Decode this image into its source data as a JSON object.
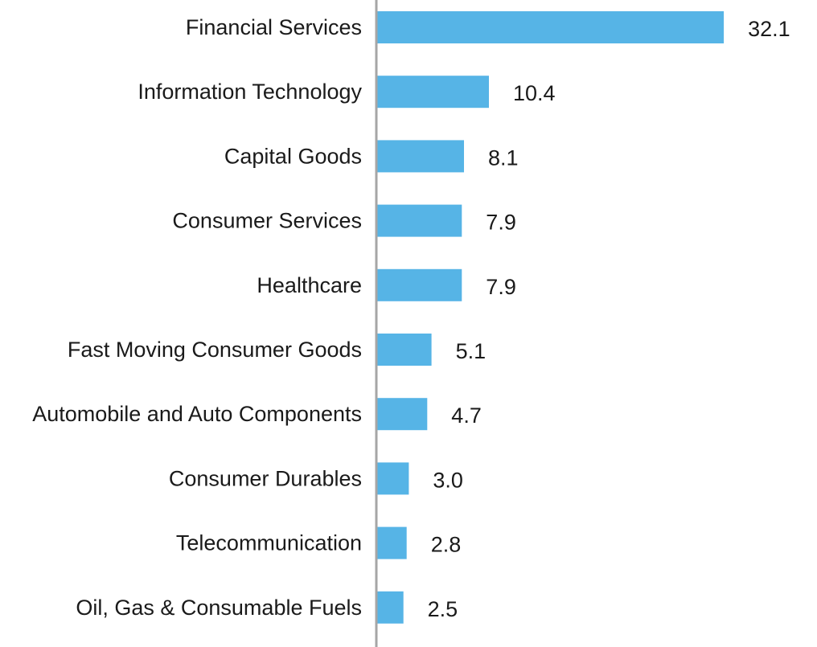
{
  "chart_data": {
    "type": "bar",
    "orientation": "horizontal",
    "categories": [
      "Financial Services",
      "Information Technology",
      "Capital Goods",
      "Consumer Services",
      "Healthcare",
      "Fast Moving Consumer Goods",
      "Automobile and Auto Components",
      "Consumer Durables",
      "Telecommunication",
      "Oil, Gas & Consumable Fuels"
    ],
    "values": [
      32.1,
      10.4,
      8.1,
      7.9,
      7.9,
      5.1,
      4.7,
      3.0,
      2.8,
      2.5
    ],
    "value_labels": [
      "32.1",
      "10.4",
      "8.1",
      "7.9",
      "7.9",
      "5.1",
      "4.7",
      "3.0",
      "2.8",
      "2.5"
    ],
    "title": "",
    "xlabel": "",
    "ylabel": "",
    "xlim": [
      0,
      35
    ],
    "grid": false,
    "legend": "none",
    "colors": {
      "bar": "#56b4e6",
      "axis": "#a6a6a6",
      "text": "#1a1a1a"
    }
  }
}
